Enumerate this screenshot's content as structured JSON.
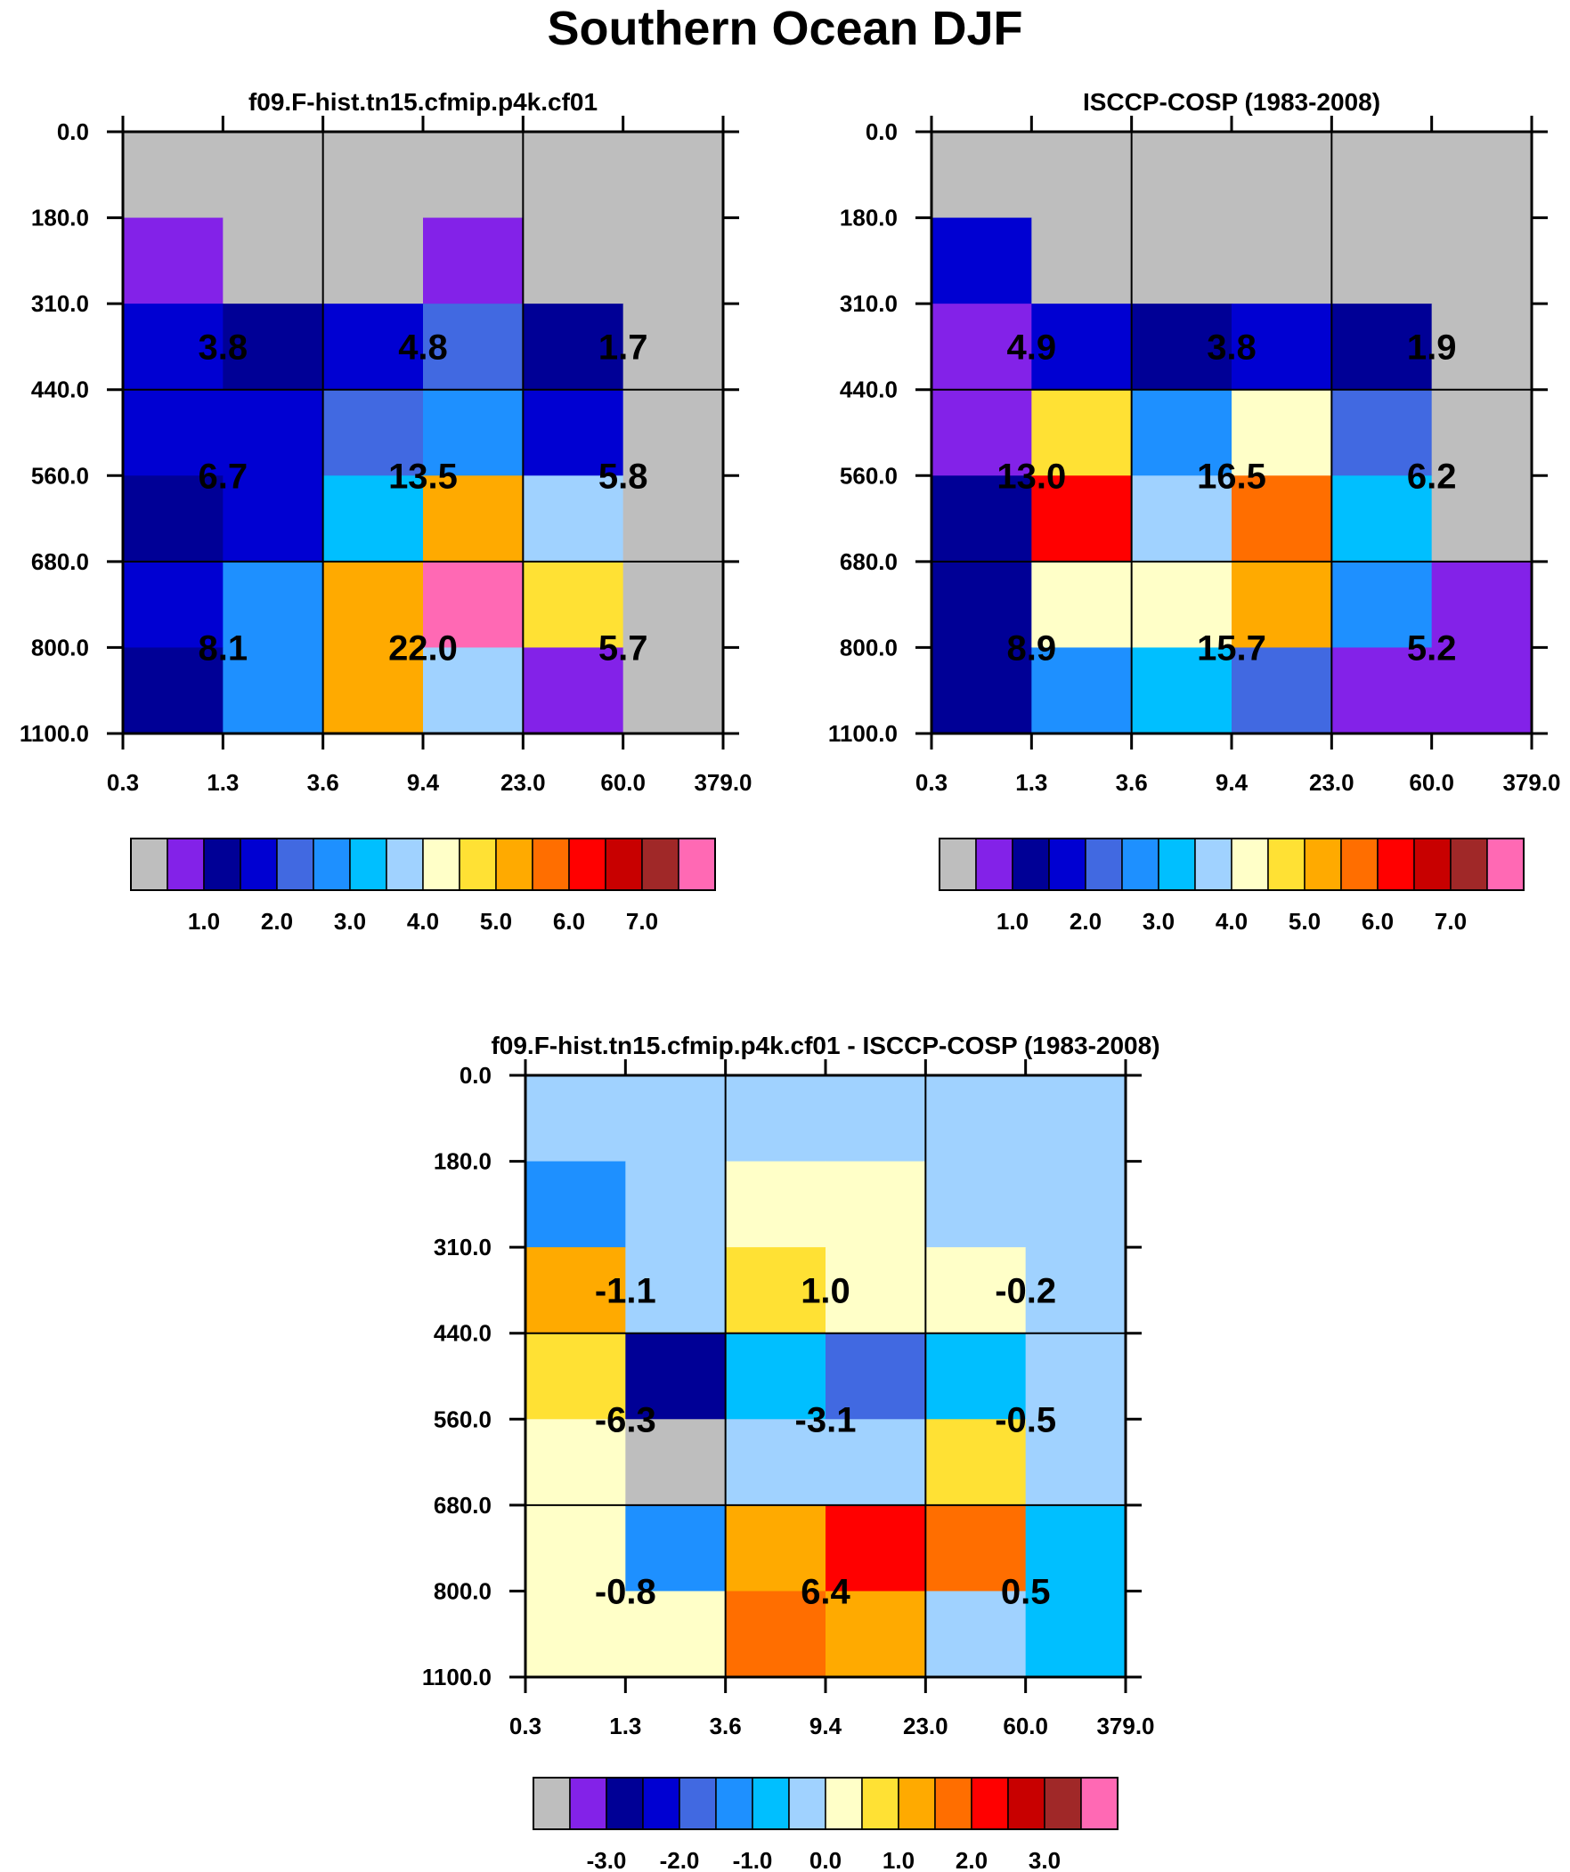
{
  "figure_title": "Southern Ocean DJF",
  "colors": {
    "palette_sequential": [
      "#bebebe",
      "#8322e8",
      "#000096",
      "#0000d2",
      "#4169e1",
      "#1e90ff",
      "#00bfff",
      "#a0d2ff",
      "#ffffc8",
      "#ffe134",
      "#ffaa00",
      "#ff6e00",
      "#ff0000",
      "#c80000",
      "#a02828",
      "#ff69b4"
    ],
    "palette_difference": [
      "#bebebe",
      "#8322e8",
      "#000096",
      "#0000d2",
      "#4169e1",
      "#1e90ff",
      "#00bfff",
      "#a0d2ff",
      "#ffffc8",
      "#ffe134",
      "#ffaa00",
      "#ff6e00",
      "#ff0000",
      "#c80000",
      "#a02828",
      "#ff69b4"
    ]
  },
  "chart_data": [
    {
      "type": "heatmap",
      "title": "f09.F-hist.tn15.cfmip.p4k.cf01",
      "x_ticks": [
        "0.3",
        "1.3",
        "3.6",
        "9.4",
        "23.0",
        "60.0",
        "379.0"
      ],
      "y_ticks": [
        "0.0",
        "180.0",
        "310.0",
        "440.0",
        "560.0",
        "680.0",
        "800.0",
        "1100.0"
      ],
      "cell_colors": [
        [
          0,
          0,
          0,
          0,
          0,
          0
        ],
        [
          1,
          0,
          0,
          1,
          0,
          0
        ],
        [
          3,
          2,
          3,
          4,
          2,
          0
        ],
        [
          3,
          3,
          4,
          5,
          3,
          0
        ],
        [
          2,
          3,
          6,
          10,
          7,
          0
        ],
        [
          3,
          5,
          10,
          15,
          9,
          0
        ],
        [
          2,
          5,
          10,
          7,
          1,
          0
        ]
      ],
      "box_values": [
        [
          "3.8",
          "4.8",
          "1.7"
        ],
        [
          "6.7",
          "13.5",
          "5.8"
        ],
        [
          "8.1",
          "22.0",
          "5.7"
        ]
      ],
      "colorbar_labels": [
        "1.0",
        "2.0",
        "3.0",
        "4.0",
        "5.0",
        "6.0",
        "7.0"
      ]
    },
    {
      "type": "heatmap",
      "title": "ISCCP-COSP (1983-2008)",
      "x_ticks": [
        "0.3",
        "1.3",
        "3.6",
        "9.4",
        "23.0",
        "60.0",
        "379.0"
      ],
      "y_ticks": [
        "0.0",
        "180.0",
        "310.0",
        "440.0",
        "560.0",
        "680.0",
        "800.0",
        "1100.0"
      ],
      "cell_colors": [
        [
          0,
          0,
          0,
          0,
          0,
          0
        ],
        [
          3,
          0,
          0,
          0,
          0,
          0
        ],
        [
          1,
          3,
          2,
          3,
          2,
          0
        ],
        [
          1,
          9,
          5,
          8,
          4,
          0
        ],
        [
          2,
          12,
          7,
          11,
          6,
          0
        ],
        [
          2,
          8,
          8,
          10,
          5,
          1
        ],
        [
          2,
          5,
          6,
          4,
          1,
          1
        ]
      ],
      "box_values": [
        [
          "4.9",
          "3.8",
          "1.9"
        ],
        [
          "13.0",
          "16.5",
          "6.2"
        ],
        [
          "8.9",
          "15.7",
          "5.2"
        ]
      ],
      "colorbar_labels": [
        "1.0",
        "2.0",
        "3.0",
        "4.0",
        "5.0",
        "6.0",
        "7.0"
      ]
    },
    {
      "type": "heatmap",
      "title": "f09.F-hist.tn15.cfmip.p4k.cf01 - ISCCP-COSP (1983-2008)",
      "x_ticks": [
        "0.3",
        "1.3",
        "3.6",
        "9.4",
        "23.0",
        "60.0",
        "379.0"
      ],
      "y_ticks": [
        "0.0",
        "180.0",
        "310.0",
        "440.0",
        "560.0",
        "680.0",
        "800.0",
        "1100.0"
      ],
      "cell_colors": [
        [
          7,
          7,
          7,
          7,
          7,
          7
        ],
        [
          5,
          7,
          8,
          8,
          7,
          7
        ],
        [
          10,
          7,
          9,
          8,
          8,
          7
        ],
        [
          9,
          2,
          6,
          4,
          6,
          7
        ],
        [
          8,
          0,
          7,
          7,
          9,
          7
        ],
        [
          8,
          5,
          10,
          12,
          11,
          6
        ],
        [
          8,
          8,
          11,
          10,
          7,
          6
        ]
      ],
      "box_values": [
        [
          "-1.1",
          "1.0",
          "-0.2"
        ],
        [
          "-6.3",
          "-3.1",
          "-0.5"
        ],
        [
          "-0.8",
          "6.4",
          "0.5"
        ]
      ],
      "colorbar_labels": [
        "-3.0",
        "-2.0",
        "-1.0",
        "0.0",
        "1.0",
        "2.0",
        "3.0"
      ]
    }
  ]
}
